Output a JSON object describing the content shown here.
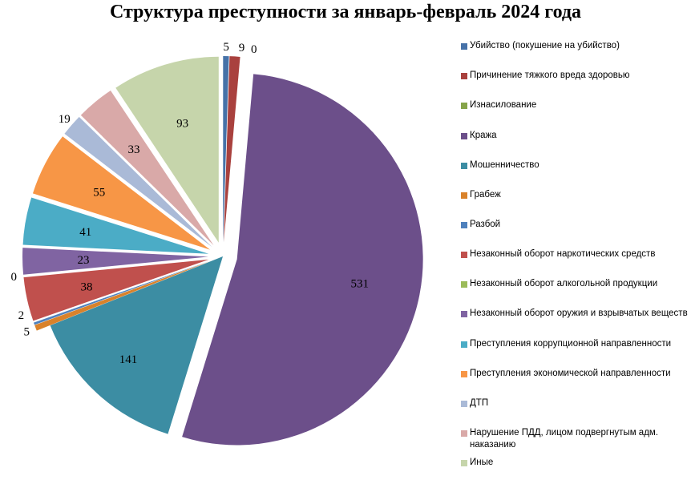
{
  "chart_data": {
    "type": "pie",
    "title": "Структура преступности за январь-февраль 2024 года",
    "legend_position": "right",
    "categories": [
      "Убийство (покушение на убийство)",
      "Причинение тяжкого вреда здоровью",
      "Изнасилование",
      "Кража",
      "Мошенничество",
      "Грабеж",
      "Разбой",
      "Незаконный оборот наркотических средств",
      "Незаконный оборот алкогольной продукции",
      "Незаконный оборот оружия и взрывчатых веществ",
      "Преступления коррупционной направленности",
      "Преступления экономической направленности",
      "ДТП",
      "Нарушение ПДД, лицом подвергнутым адм. наказанию",
      "Иные"
    ],
    "values": [
      5,
      9,
      0,
      531,
      141,
      5,
      2,
      38,
      0,
      23,
      41,
      55,
      19,
      33,
      93
    ],
    "colors": [
      "#4672a8",
      "#a9413e",
      "#86a44a",
      "#6c4f8a",
      "#3c8da3",
      "#d9822b",
      "#4f81bd",
      "#c0504d",
      "#9bbb59",
      "#8064a2",
      "#4bacc6",
      "#f79646",
      "#aabad7",
      "#d9a9a8",
      "#c6d5ab"
    ],
    "exploded": [
      true,
      true,
      true,
      true,
      false,
      true,
      true,
      true,
      true,
      true,
      true,
      true,
      true,
      true,
      true
    ]
  }
}
